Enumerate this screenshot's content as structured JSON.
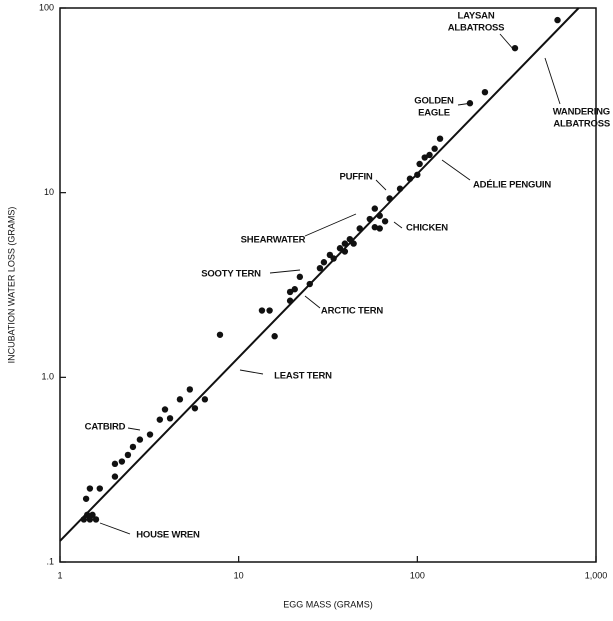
{
  "chart_data": {
    "type": "scatter",
    "x_label": "EGG MASS (GRAMS)",
    "y_label": "INCUBATION WATER LOSS (GRAMS)",
    "x_log": true,
    "y_log": true,
    "xlim": [
      1,
      1000
    ],
    "ylim": [
      0.1,
      100
    ],
    "xticks": [
      1,
      10,
      100,
      {
        "value": 1000,
        "label": "1,000"
      }
    ],
    "yticks": [
      {
        "value": 0.1,
        "label": ".1"
      },
      {
        "value": 1,
        "label": "1.0"
      },
      10,
      100
    ],
    "color": "#111111",
    "x": [
      1.36,
      1.47,
      1.59,
      1.42,
      1.52,
      1.4,
      1.47,
      1.67,
      2.03,
      2.03,
      2.22,
      2.4,
      2.56,
      2.8,
      3.19,
      3.62,
      3.87,
      4.13,
      4.69,
      5.33,
      5.69,
      6.47,
      7.86,
      13.5,
      14.9,
      15.9,
      19.4,
      20.6,
      22,
      19.4,
      25,
      28.5,
      30,
      32.4,
      34,
      36.9,
      39.3,
      41.9,
      39.3,
      44,
      47.6,
      54.2,
      57.8,
      57.8,
      61.6,
      61.6,
      66,
      70,
      80,
      90.9,
      100,
      103,
      110,
      117,
      125,
      134,
      197,
      239,
      352,
      609
    ],
    "values": [
      0.17,
      0.17,
      0.17,
      0.18,
      0.18,
      0.22,
      0.25,
      0.25,
      0.29,
      0.34,
      0.35,
      0.38,
      0.42,
      0.46,
      0.49,
      0.59,
      0.67,
      0.6,
      0.76,
      0.86,
      0.68,
      0.76,
      1.7,
      2.3,
      2.3,
      1.67,
      2.6,
      3,
      3.5,
      2.9,
      3.2,
      3.9,
      4.2,
      4.6,
      4.4,
      5,
      5.3,
      5.6,
      4.8,
      5.3,
      6.4,
      7.2,
      6.5,
      8.2,
      7.5,
      6.4,
      7,
      9.3,
      10.5,
      11.9,
      12.5,
      14.3,
      15.5,
      16,
      17.3,
      19.6,
      30.5,
      35,
      60.6,
      86
    ],
    "fit_line": {
      "x": [
        1,
        800
      ],
      "y": [
        0.13,
        100
      ]
    },
    "annotations": [
      {
        "lines": [
          "LAYSAN",
          "ALBATROSS"
        ]
      },
      {
        "lines": [
          "GOLDEN",
          "EAGLE"
        ]
      },
      {
        "lines": [
          "WANDERING",
          "ALBATROSS"
        ]
      },
      {
        "lines": [
          "PUFFIN"
        ]
      },
      {
        "lines": [
          "ADÉLIE PENGUIN"
        ]
      },
      {
        "lines": [
          "SHEARWATER"
        ]
      },
      {
        "lines": [
          "CHICKEN"
        ]
      },
      {
        "lines": [
          "SOOTY TERN"
        ]
      },
      {
        "lines": [
          "ARCTIC TERN"
        ]
      },
      {
        "lines": [
          "LEAST TERN"
        ]
      },
      {
        "lines": [
          "CATBIRD"
        ]
      },
      {
        "lines": [
          "HOUSE WREN"
        ]
      }
    ]
  }
}
